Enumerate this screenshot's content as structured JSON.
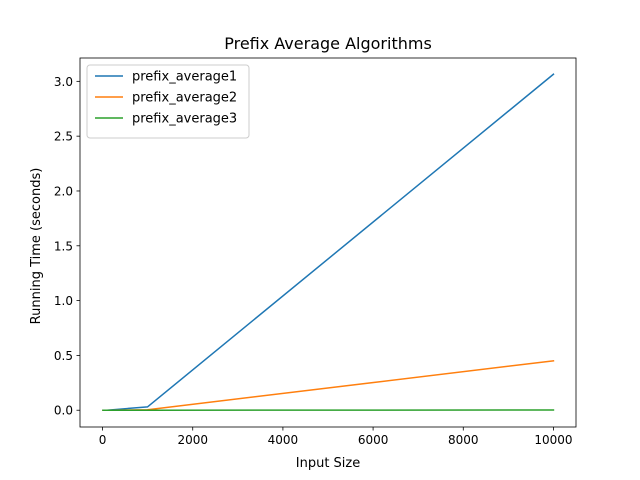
{
  "chart_data": {
    "type": "line",
    "title": "Prefix Average Algorithms",
    "xlabel": "Input Size",
    "ylabel": "Running Time (seconds)",
    "xlim": [
      -500,
      10500
    ],
    "ylim": [
      -0.153,
      3.213
    ],
    "xticks": [
      0,
      2000,
      4000,
      6000,
      8000,
      10000
    ],
    "xtick_labels": [
      "0",
      "2000",
      "4000",
      "6000",
      "8000",
      "10000"
    ],
    "yticks": [
      0.0,
      0.5,
      1.0,
      1.5,
      2.0,
      2.5,
      3.0
    ],
    "ytick_labels": [
      "0.0",
      "0.5",
      "1.0",
      "1.5",
      "2.0",
      "2.5",
      "3.0"
    ],
    "grid": false,
    "legend_position": "top-left",
    "x": [
      10,
      100,
      1000,
      10000
    ],
    "series": [
      {
        "name": "prefix_average1",
        "color": "#1f77b4",
        "values": [
          0.0,
          0.0003,
          0.031,
          3.065
        ]
      },
      {
        "name": "prefix_average2",
        "color": "#ff7f0e",
        "values": [
          0.0,
          5e-05,
          0.0045,
          0.451
        ]
      },
      {
        "name": "prefix_average3",
        "color": "#2ca02c",
        "values": [
          0.0,
          0.0,
          0.0002,
          0.0022
        ]
      }
    ]
  }
}
